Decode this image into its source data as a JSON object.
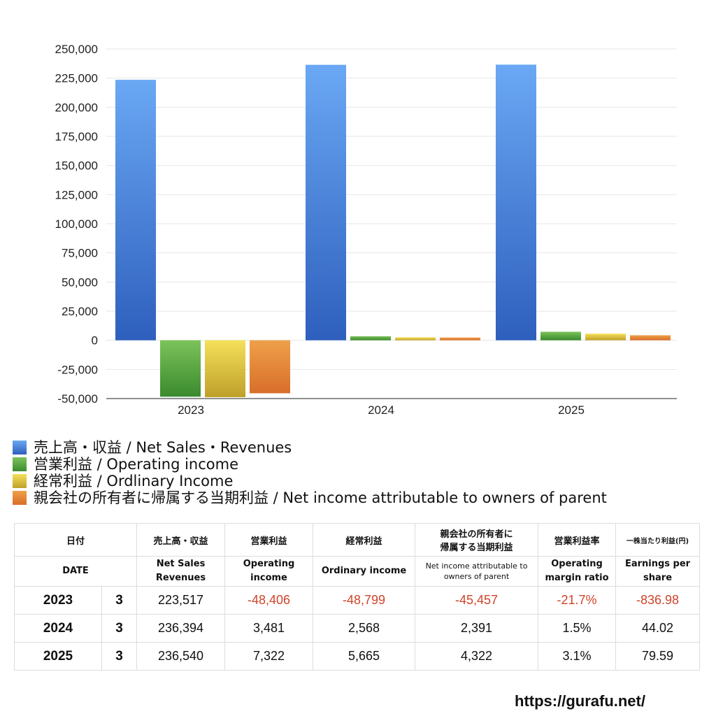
{
  "chart_data": {
    "type": "bar",
    "categories": [
      "2023",
      "2024",
      "2025"
    ],
    "series": [
      {
        "name": "売上高・収益 / Net Sales・Revenues",
        "values": [
          223517,
          236394,
          236540
        ],
        "color_top": "#6aa8f4",
        "color_bottom": "#2e5fbd"
      },
      {
        "name": "営業利益 / Operating income",
        "values": [
          -48406,
          3481,
          7322
        ],
        "color_top": "#7cc35a",
        "color_bottom": "#3a8a2e"
      },
      {
        "name": "経常利益 / Ordlinary Income",
        "values": [
          -48799,
          2568,
          5665
        ],
        "color_top": "#f5e05a",
        "color_bottom": "#bfa02a"
      },
      {
        "name": "親会社の所有者に帰属する当期利益 / Net income attributable to owners of parent",
        "values": [
          -45457,
          2391,
          4322
        ],
        "color_top": "#eea04a",
        "color_bottom": "#d86e2a"
      }
    ],
    "ylim": [
      -50000,
      250000
    ],
    "yticks": [
      "250,000",
      "225,000",
      "200,000",
      "175,000",
      "150,000",
      "125,000",
      "100,000",
      "75,000",
      "50,000",
      "25,000",
      "0",
      "-25,000",
      "-50,000"
    ],
    "ytick_values": [
      250000,
      225000,
      200000,
      175000,
      150000,
      125000,
      100000,
      75000,
      50000,
      25000,
      0,
      -25000,
      -50000
    ],
    "grid": true,
    "legend_position": "bottom"
  },
  "table": {
    "header_jp": [
      "日付",
      "売上高・収益",
      "営業利益",
      "経常利益",
      "親会社の所有者に",
      "帰属する当期利益",
      "営業利益率",
      "一株当たり利益(円)"
    ],
    "header_en": {
      "date": "DATE",
      "sales_1": "Net Sales",
      "sales_2": "Revenues",
      "op_1": "Operating",
      "op_2": "income",
      "ord": "Ordinary income",
      "net_1": "Net income attributable to",
      "net_2": "owners of parent",
      "margin_1": "Operating",
      "margin_2": "margin ratio",
      "eps_1": "Earnings per",
      "eps_2": "share"
    },
    "rows": [
      {
        "year": "2023",
        "month": "3",
        "sales": "223,517",
        "op": "-48,406",
        "ord": "-48,799",
        "net": "-45,457",
        "margin": "-21.7%",
        "eps": "-836.98"
      },
      {
        "year": "2024",
        "month": "3",
        "sales": "236,394",
        "op": "3,481",
        "ord": "2,568",
        "net": "2,391",
        "margin": "1.5%",
        "eps": "44.02"
      },
      {
        "year": "2025",
        "month": "3",
        "sales": "236,540",
        "op": "7,322",
        "ord": "5,665",
        "net": "4,322",
        "margin": "3.1%",
        "eps": "79.59"
      }
    ]
  },
  "footer": {
    "url": "https://gurafu.net/"
  }
}
